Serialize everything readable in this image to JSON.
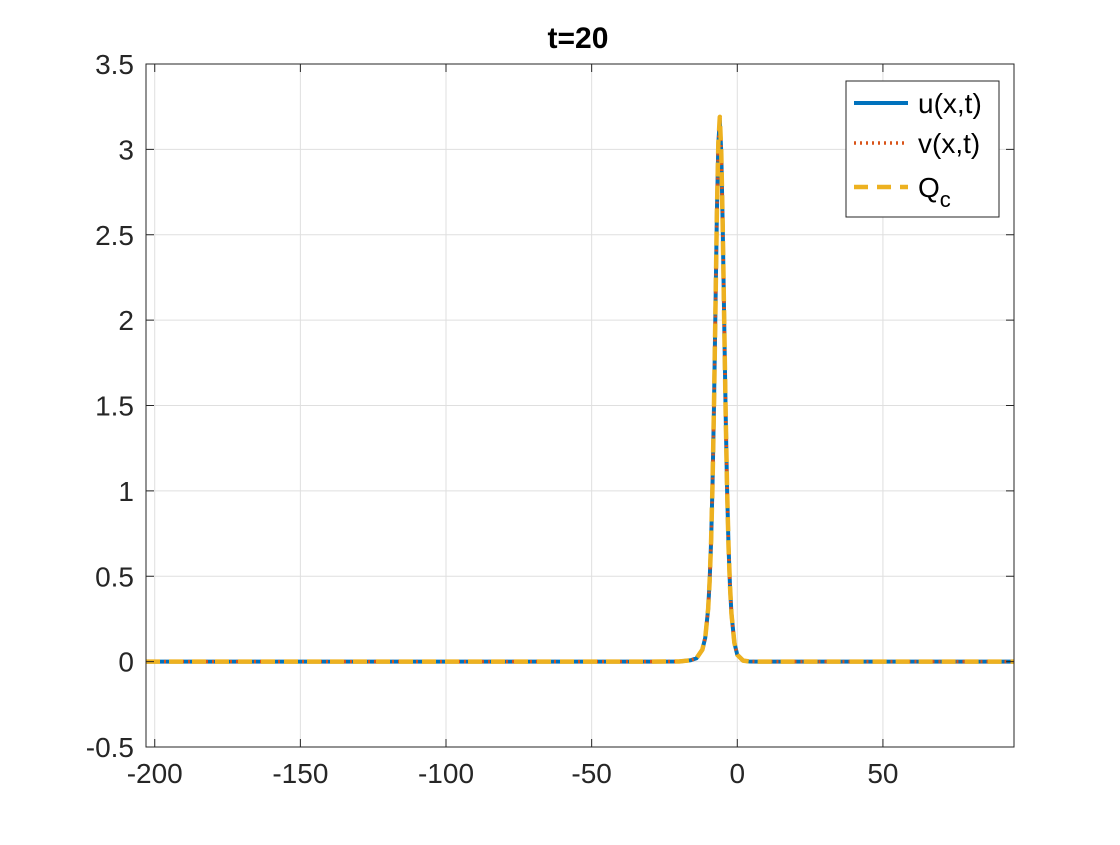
{
  "chart_data": {
    "type": "line",
    "title": "t=20",
    "xlabel": "",
    "ylabel": "",
    "xlim": [
      -203,
      95
    ],
    "ylim": [
      -0.5,
      3.5
    ],
    "xticks": [
      -200,
      -150,
      -100,
      -50,
      0,
      50
    ],
    "yticks": [
      -0.5,
      0,
      0.5,
      1,
      1.5,
      2,
      2.5,
      3,
      3.5
    ],
    "xtick_labels": [
      "-200",
      "-150",
      "-100",
      "-50",
      "0",
      "50"
    ],
    "ytick_labels": [
      "-0.5",
      "0",
      "0.5",
      "1",
      "1.5",
      "2",
      "2.5",
      "3",
      "3.5"
    ],
    "grid": true,
    "legend_position": "top-right",
    "x": [
      -203,
      -60,
      -30,
      -20,
      -16,
      -14,
      -12,
      -11,
      -10,
      -9.5,
      -9,
      -8.5,
      -8,
      -7.5,
      -7,
      -6.5,
      -6,
      -5.5,
      -5,
      -4.5,
      -4,
      -3.5,
      -3,
      -2.5,
      -2,
      -1,
      0,
      2,
      4,
      8,
      20,
      60,
      95
    ],
    "series": [
      {
        "name": "u(x,t)",
        "color": "#0072BD",
        "style": "solid",
        "y": [
          0,
          0,
          0,
          0.001,
          0.008,
          0.02,
          0.07,
          0.14,
          0.31,
          0.47,
          0.7,
          1.04,
          1.5,
          2.06,
          2.63,
          3.04,
          3.17,
          2.98,
          2.55,
          2.0,
          1.46,
          1.01,
          0.67,
          0.44,
          0.28,
          0.11,
          0.04,
          0.006,
          0.001,
          0,
          0,
          0,
          0
        ]
      },
      {
        "name": "v(x,t)",
        "color": "#D95319",
        "style": "dotted",
        "y": [
          0,
          0,
          0,
          0.001,
          0.008,
          0.02,
          0.07,
          0.14,
          0.31,
          0.47,
          0.7,
          1.04,
          1.5,
          2.06,
          2.63,
          3.04,
          3.17,
          2.98,
          2.55,
          2.0,
          1.46,
          1.01,
          0.67,
          0.44,
          0.28,
          0.11,
          0.04,
          0.006,
          0.001,
          0,
          0,
          0,
          0
        ]
      },
      {
        "name": "Q_c",
        "color": "#EDB120",
        "style": "dashed",
        "y": [
          0,
          0,
          0,
          0.001,
          0.008,
          0.02,
          0.07,
          0.14,
          0.31,
          0.47,
          0.7,
          1.04,
          1.5,
          2.06,
          2.63,
          3.04,
          3.19,
          2.98,
          2.55,
          2.0,
          1.46,
          1.01,
          0.67,
          0.44,
          0.28,
          0.11,
          0.04,
          0.006,
          0.001,
          0,
          0,
          0,
          0
        ]
      }
    ],
    "legend": {
      "entries": [
        {
          "label": "u(x,t)"
        },
        {
          "label": "v(x,t)"
        },
        {
          "label_main": "Q",
          "label_sub": "c"
        }
      ]
    }
  }
}
